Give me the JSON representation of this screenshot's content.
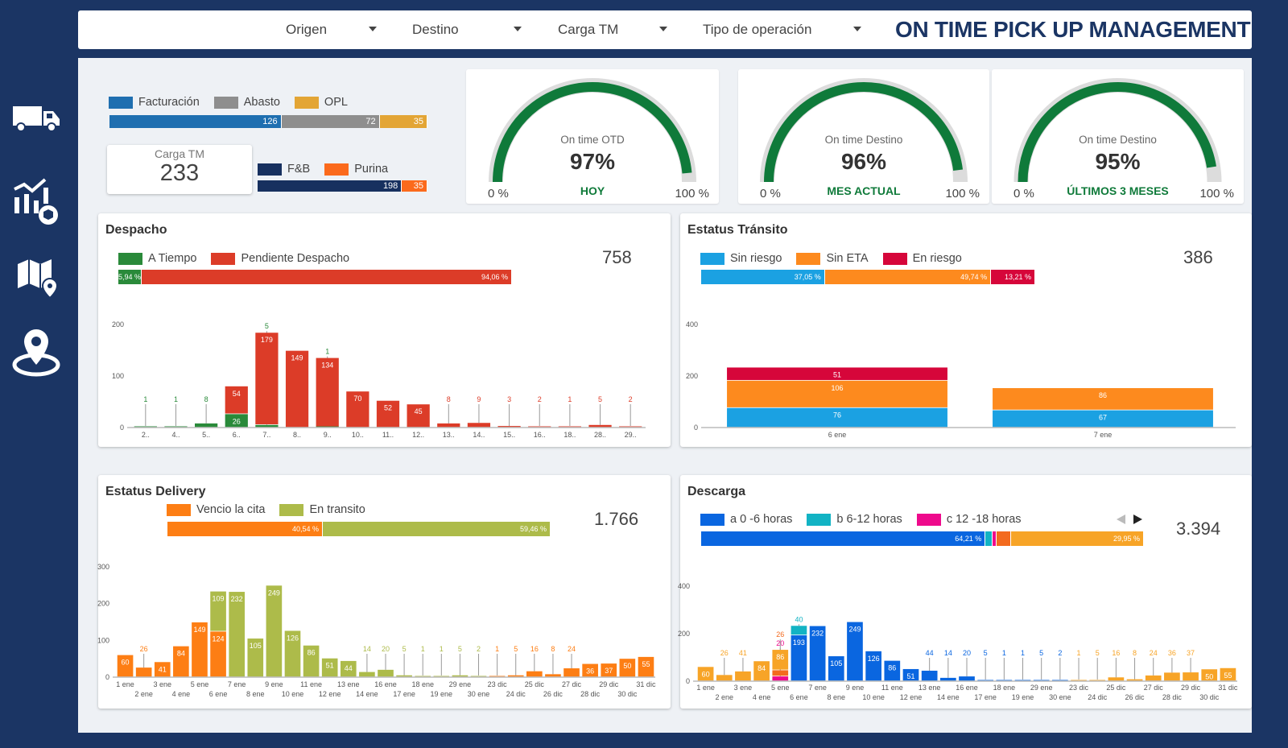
{
  "header": {
    "filters": [
      "Origen",
      "Destino",
      "Carga TM",
      "Tipo de operación"
    ],
    "title": "ON TIME PICK UP MANAGEMENT"
  },
  "sidebar": {
    "items": [
      "truck-icon",
      "analytics-icon",
      "map-icon",
      "location-pin-icon"
    ]
  },
  "colors": {
    "navy": "#1b3564",
    "green": "#0f7a3a",
    "red": "#dc3c28"
  },
  "kpi": {
    "segments1": {
      "legend": [
        "Facturación",
        "Abasto",
        "OPL"
      ],
      "values": [
        "126",
        "72",
        "35"
      ],
      "nums": [
        126,
        72,
        35
      ],
      "colors": [
        "#1f6fb0",
        "#8e8e8e",
        "#e3a535"
      ]
    },
    "carga": {
      "label": "Carga TM",
      "value": "233"
    },
    "segments2": {
      "legend": [
        "F&B",
        "Purina"
      ],
      "values": [
        "198",
        "35"
      ],
      "nums": [
        198,
        35
      ],
      "colors": [
        "#17305f",
        "#fb6a1c"
      ]
    }
  },
  "gauges": [
    {
      "label": "On time OTD",
      "value": "97%",
      "pct": 97,
      "sub": "HOY",
      "min": "0 %",
      "max": "100 %"
    },
    {
      "label": "On time Destino",
      "value": "96%",
      "pct": 96,
      "sub": "MES ACTUAL",
      "min": "0 %",
      "max": "100 %"
    },
    {
      "label": "On time Destino",
      "value": "95%",
      "pct": 95,
      "sub": "ÚLTIMOS 3 MESES",
      "min": "0 %",
      "max": "100 %"
    }
  ],
  "despacho": {
    "title": "Despacho",
    "total": "758",
    "legend": [
      "A Tiempo",
      "Pendiente Despacho"
    ],
    "pcts": [
      "5,94 %",
      "94,06 %"
    ],
    "pctnums": [
      5.94,
      94.06
    ]
  },
  "transito": {
    "title": "Estatus Tránsito",
    "total": "386",
    "legend": [
      "Sin riesgo",
      "Sin ETA",
      "En riesgo"
    ],
    "pcts": [
      "37,05 %",
      "49,74 %",
      "13,21 %"
    ],
    "pctnums": [
      37.05,
      49.74,
      13.21
    ]
  },
  "delivery": {
    "title": "Estatus Delivery",
    "total": "1.766",
    "legend": [
      "Vencio la cita",
      "En transito"
    ],
    "pcts": [
      "40,54 %",
      "59,46 %"
    ],
    "pctnums": [
      40.54,
      59.46
    ]
  },
  "descarga": {
    "title": "Descarga",
    "total": "3.394",
    "legend": [
      "a 0 -6 horas",
      "b 6-12 horas",
      "c 12 -18 horas"
    ],
    "pcts": [
      "64,21 %",
      "",
      "",
      "",
      "29,95 %"
    ],
    "pctnums": [
      64.21,
      1.5,
      1.0,
      3.3,
      29.95
    ]
  },
  "chart_data": [
    {
      "id": "despacho",
      "type": "bar",
      "stacked": true,
      "ylim": [
        0,
        200
      ],
      "yticks": [
        0,
        100,
        200
      ],
      "categories": [
        "2..",
        "4..",
        "5..",
        "6..",
        "7..",
        "8..",
        "9..",
        "10..",
        "11..",
        "12..",
        "13..",
        "14..",
        "15..",
        "16..",
        "18..",
        "28..",
        "29.."
      ],
      "series": [
        {
          "name": "A Tiempo",
          "color": "#2a8a3a",
          "values": [
            1,
            1,
            8,
            26,
            5,
            0,
            1,
            0,
            0,
            0,
            0,
            0,
            0,
            0,
            0,
            0,
            0
          ]
        },
        {
          "name": "Pendiente Despacho",
          "color": "#dc3c28",
          "values": [
            0,
            0,
            0,
            54,
            179,
            149,
            134,
            70,
            52,
            45,
            8,
            9,
            3,
            2,
            1,
            5,
            2
          ]
        }
      ]
    },
    {
      "id": "transito",
      "type": "bar",
      "stacked": true,
      "ylim": [
        0,
        400
      ],
      "yticks": [
        0,
        200,
        400
      ],
      "categories": [
        "6 ene",
        "7 ene"
      ],
      "series": [
        {
          "name": "Sin riesgo",
          "color": "#1ba1e2",
          "values": [
            76,
            67
          ]
        },
        {
          "name": "Sin ETA",
          "color": "#fd8a1e",
          "values": [
            106,
            86
          ]
        },
        {
          "name": "En riesgo",
          "color": "#d6063a",
          "values": [
            51,
            0
          ]
        }
      ]
    },
    {
      "id": "delivery",
      "type": "bar",
      "stacked": true,
      "ylim": [
        0,
        300
      ],
      "yticks": [
        0,
        100,
        200,
        300
      ],
      "categories": [
        "1 ene",
        "2 ene",
        "3 ene",
        "4 ene",
        "5 ene",
        "6 ene",
        "7 ene",
        "8 ene",
        "9 ene",
        "10 ene",
        "11 ene",
        "12 ene",
        "13 ene",
        "14 ene",
        "16 ene",
        "17 ene",
        "18 ene",
        "19 ene",
        "29 ene",
        "30 ene",
        "23 dic",
        "24 dic",
        "25 dic",
        "26 dic",
        "27 dic",
        "28 dic",
        "29 dic",
        "30 dic",
        "31 dic"
      ],
      "series": [
        {
          "name": "Vencio la cita",
          "color": "#fd7e14",
          "values": [
            60,
            26,
            41,
            84,
            149,
            124,
            0,
            0,
            0,
            0,
            0,
            0,
            0,
            0,
            0,
            0,
            0,
            0,
            0,
            0,
            1,
            5,
            16,
            8,
            24,
            36,
            37,
            50,
            55
          ]
        },
        {
          "name": "En transito",
          "color": "#adbb4a",
          "values": [
            0,
            0,
            0,
            0,
            0,
            109,
            232,
            105,
            249,
            126,
            86,
            51,
            44,
            14,
            20,
            5,
            1,
            1,
            5,
            2,
            0,
            0,
            0,
            0,
            0,
            0,
            0,
            0,
            0
          ]
        }
      ]
    },
    {
      "id": "descarga",
      "type": "bar",
      "stacked": true,
      "ylim": [
        0,
        400
      ],
      "yticks": [
        0,
        200,
        400
      ],
      "categories": [
        "1 ene",
        "2 ene",
        "3 ene",
        "4 ene",
        "5 ene",
        "6 ene",
        "7 ene",
        "8 ene",
        "9 ene",
        "10 ene",
        "11 ene",
        "12 ene",
        "13 ene",
        "14 ene",
        "16 ene",
        "17 ene",
        "18 ene",
        "19 ene",
        "29 ene",
        "30 ene",
        "23 dic",
        "24 dic",
        "25 dic",
        "26 dic",
        "27 dic",
        "28 dic",
        "29 dic",
        "30 dic",
        "31 dic"
      ],
      "series": [
        {
          "name": "c 12 -18 horas",
          "color": "#ee0a8c",
          "values": [
            0,
            0,
            0,
            0,
            20,
            0,
            0,
            0,
            0,
            0,
            0,
            0,
            0,
            0,
            0,
            0,
            0,
            0,
            0,
            0,
            0,
            0,
            0,
            0,
            0,
            0,
            0,
            0,
            0
          ]
        },
        {
          "name": "",
          "color": "#f36a1e",
          "values": [
            0,
            0,
            0,
            0,
            26,
            0,
            0,
            0,
            0,
            0,
            0,
            0,
            0,
            0,
            0,
            0,
            0,
            0,
            0,
            0,
            0,
            0,
            0,
            0,
            0,
            0,
            0,
            0,
            0
          ]
        },
        {
          "name": "a 0 -6 horas",
          "color": "#0a66e0",
          "values": [
            0,
            0,
            0,
            0,
            0,
            193,
            232,
            105,
            249,
            126,
            86,
            51,
            44,
            14,
            20,
            5,
            1,
            1,
            5,
            2,
            0,
            0,
            0,
            0,
            0,
            0,
            0,
            0,
            0
          ]
        },
        {
          "name": "b 6-12 horas",
          "color": "#12b3c4",
          "values": [
            0,
            0,
            0,
            0,
            0,
            40,
            0,
            0,
            0,
            0,
            0,
            0,
            0,
            0,
            0,
            0,
            0,
            0,
            0,
            0,
            0,
            0,
            0,
            0,
            0,
            0,
            0,
            0,
            0
          ]
        },
        {
          "name": "",
          "color": "#f7a427",
          "values": [
            60,
            26,
            41,
            84,
            86,
            0,
            0,
            0,
            0,
            0,
            0,
            0,
            0,
            0,
            0,
            0,
            0,
            0,
            0,
            0,
            1,
            5,
            16,
            8,
            24,
            36,
            37,
            50,
            55
          ]
        }
      ]
    }
  ]
}
